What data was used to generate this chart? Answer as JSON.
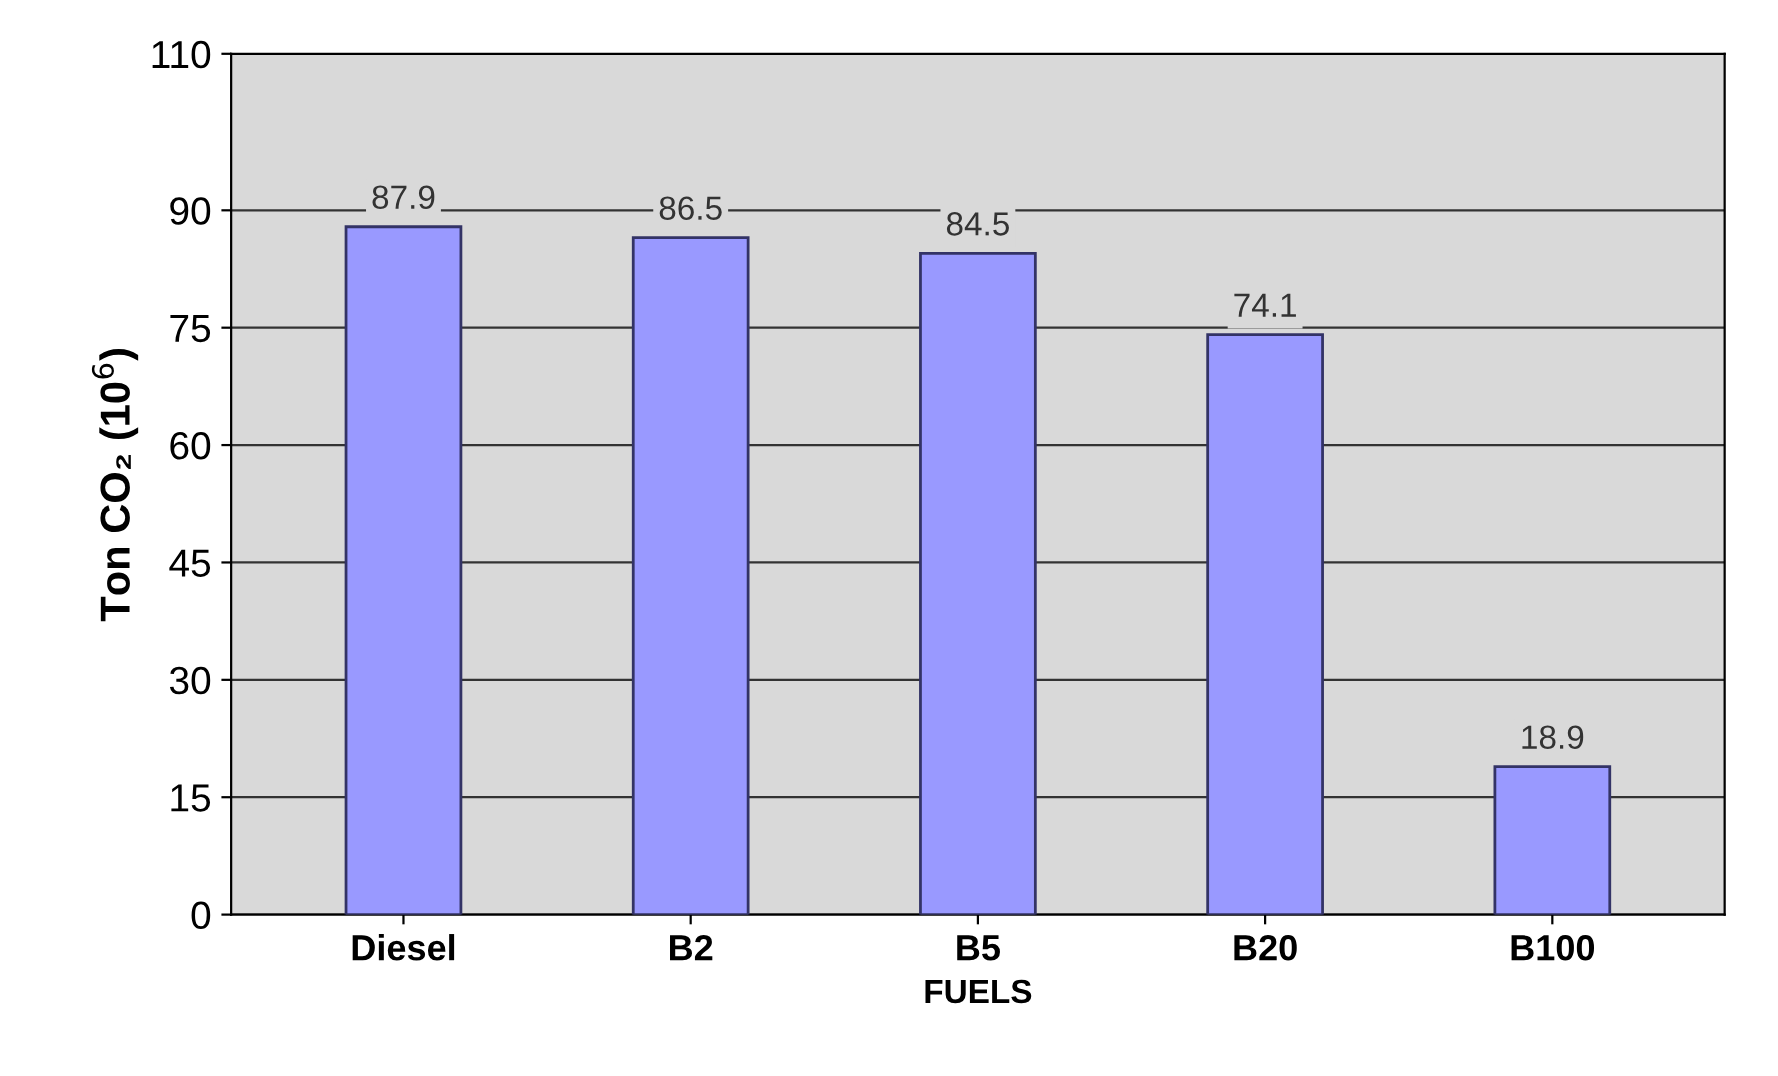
{
  "chart_data": {
    "type": "bar",
    "xlabel": "FUELS",
    "ylabel": "Ton CO₂ (10$^{6}$)",
    "categories": [
      "Diesel",
      "B2",
      "B5",
      "B20",
      "B100"
    ],
    "values": [
      87.9,
      86.5,
      84.5,
      74.1,
      18.9
    ],
    "color": "#9999ff",
    "ylim": [
      0,
      110
    ],
    "yticks": [
      0,
      15,
      30,
      45,
      60,
      75,
      90,
      110
    ],
    "grid": "y",
    "data_labels": true
  }
}
